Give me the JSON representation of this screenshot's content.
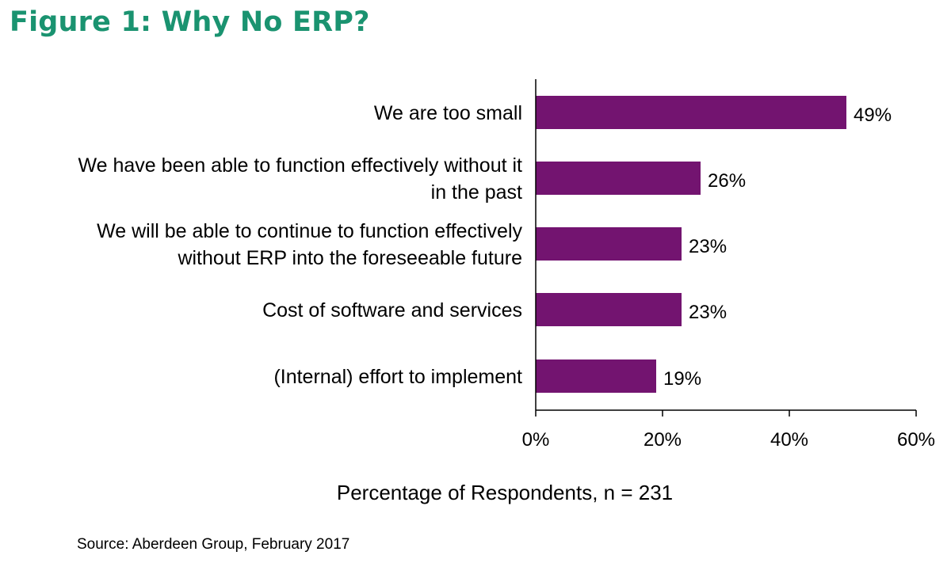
{
  "figure_title": "Figure 1: Why No ERP?",
  "source": "Source: Aberdeen Group, February 2017",
  "colors": {
    "title": "#1a9370",
    "bar": "#731470",
    "axis": "#000000"
  },
  "chart_data": {
    "type": "bar",
    "orientation": "horizontal",
    "categories": [
      [
        "We are too small"
      ],
      [
        "We have been able to function effectively without it",
        "in the past"
      ],
      [
        "We will be able to continue to function effectively",
        "without ERP into the foreseeable future"
      ],
      [
        "Cost of software and services"
      ],
      [
        "(Internal) effort to implement"
      ]
    ],
    "values": [
      49,
      26,
      23,
      23,
      19
    ],
    "value_labels": [
      "49%",
      "26%",
      "23%",
      "23%",
      "19%"
    ],
    "xlim": [
      0,
      60
    ],
    "xticks": [
      0,
      20,
      40,
      60
    ],
    "xtick_labels": [
      "0%",
      "20%",
      "40%",
      "60%"
    ],
    "xlabel": "Percentage of Respondents, n = 231",
    "grid": false,
    "legend": "none"
  }
}
